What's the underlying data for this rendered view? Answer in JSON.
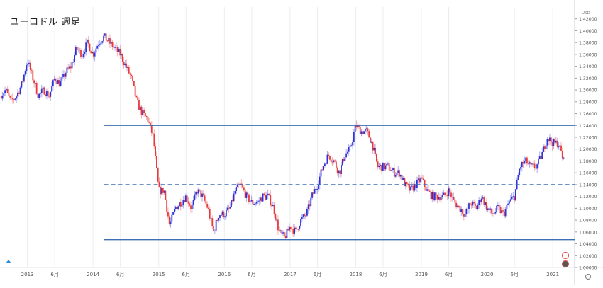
{
  "chart_data": {
    "type": "candlestick",
    "title": "ユーロドル 週足",
    "currency": "USD",
    "y_unit": "USD",
    "ylim": [
      1.0,
      1.44
    ],
    "y_ticks": [
      1.0,
      1.02,
      1.04,
      1.06,
      1.08,
      1.1,
      1.12,
      1.14,
      1.16,
      1.18,
      1.2,
      1.22,
      1.24,
      1.26,
      1.28,
      1.3,
      1.32,
      1.34,
      1.36,
      1.38,
      1.4,
      1.42
    ],
    "y_tick_labels": [
      "1.00000",
      "1.02000",
      "1.04000",
      "1.06000",
      "1.08000",
      "1.10000",
      "1.12000",
      "1.14000",
      "1.16000",
      "1.18000",
      "1.20000",
      "1.22000",
      "1.24000",
      "1.26000",
      "1.28000",
      "1.30000",
      "1.32000",
      "1.34000",
      "1.36000",
      "1.38000",
      "1.40000",
      "1.42000"
    ],
    "x_range": [
      "2012-08",
      "2021-05"
    ],
    "x_ticks": [
      {
        "date": "2013-01",
        "label": "2013"
      },
      {
        "date": "2013-06",
        "label": "6月"
      },
      {
        "date": "2014-01",
        "label": "2014"
      },
      {
        "date": "2014-06",
        "label": "6月"
      },
      {
        "date": "2015-01",
        "label": "2015"
      },
      {
        "date": "2015-06",
        "label": "6月"
      },
      {
        "date": "2016-01",
        "label": "2016"
      },
      {
        "date": "2016-06",
        "label": "6月"
      },
      {
        "date": "2017-01",
        "label": "2017"
      },
      {
        "date": "2017-06",
        "label": "6月"
      },
      {
        "date": "2018-01",
        "label": "2018"
      },
      {
        "date": "2018-06",
        "label": "6月"
      },
      {
        "date": "2019-01",
        "label": "2019"
      },
      {
        "date": "2019-06",
        "label": "6月"
      },
      {
        "date": "2020-01",
        "label": "2020"
      },
      {
        "date": "2020-06",
        "label": "6月"
      },
      {
        "date": "2021-01",
        "label": "2021"
      }
    ],
    "price_path": [
      [
        "2012-08",
        1.29
      ],
      [
        "2012-09",
        1.3
      ],
      [
        "2012-10",
        1.28
      ],
      [
        "2012-11",
        1.29
      ],
      [
        "2012-12",
        1.31
      ],
      [
        "2013-01",
        1.35
      ],
      [
        "2013-02",
        1.32
      ],
      [
        "2013-03",
        1.29
      ],
      [
        "2013-04",
        1.3
      ],
      [
        "2013-05",
        1.29
      ],
      [
        "2013-06",
        1.32
      ],
      [
        "2013-07",
        1.31
      ],
      [
        "2013-08",
        1.33
      ],
      [
        "2013-09",
        1.34
      ],
      [
        "2013-10",
        1.37
      ],
      [
        "2013-11",
        1.36
      ],
      [
        "2013-12",
        1.38
      ],
      [
        "2014-01",
        1.36
      ],
      [
        "2014-02",
        1.38
      ],
      [
        "2014-03",
        1.39
      ],
      [
        "2014-04",
        1.38
      ],
      [
        "2014-05",
        1.37
      ],
      [
        "2014-06",
        1.36
      ],
      [
        "2014-07",
        1.34
      ],
      [
        "2014-08",
        1.32
      ],
      [
        "2014-09",
        1.28
      ],
      [
        "2014-10",
        1.26
      ],
      [
        "2014-11",
        1.25
      ],
      [
        "2014-12",
        1.22
      ],
      [
        "2015-01",
        1.13
      ],
      [
        "2015-02",
        1.13
      ],
      [
        "2015-03",
        1.07
      ],
      [
        "2015-04",
        1.1
      ],
      [
        "2015-05",
        1.11
      ],
      [
        "2015-06",
        1.12
      ],
      [
        "2015-07",
        1.1
      ],
      [
        "2015-08",
        1.13
      ],
      [
        "2015-09",
        1.12
      ],
      [
        "2015-10",
        1.1
      ],
      [
        "2015-11",
        1.06
      ],
      [
        "2015-12",
        1.09
      ],
      [
        "2016-01",
        1.09
      ],
      [
        "2016-02",
        1.1
      ],
      [
        "2016-03",
        1.13
      ],
      [
        "2016-04",
        1.14
      ],
      [
        "2016-05",
        1.12
      ],
      [
        "2016-06",
        1.11
      ],
      [
        "2016-07",
        1.11
      ],
      [
        "2016-08",
        1.12
      ],
      [
        "2016-09",
        1.12
      ],
      [
        "2016-10",
        1.1
      ],
      [
        "2016-11",
        1.06
      ],
      [
        "2016-12",
        1.05
      ],
      [
        "2017-01",
        1.07
      ],
      [
        "2017-02",
        1.06
      ],
      [
        "2017-03",
        1.08
      ],
      [
        "2017-04",
        1.09
      ],
      [
        "2017-05",
        1.12
      ],
      [
        "2017-06",
        1.14
      ],
      [
        "2017-07",
        1.17
      ],
      [
        "2017-08",
        1.19
      ],
      [
        "2017-09",
        1.18
      ],
      [
        "2017-10",
        1.16
      ],
      [
        "2017-11",
        1.19
      ],
      [
        "2017-12",
        1.2
      ],
      [
        "2018-01",
        1.24
      ],
      [
        "2018-02",
        1.23
      ],
      [
        "2018-03",
        1.23
      ],
      [
        "2018-04",
        1.21
      ],
      [
        "2018-05",
        1.17
      ],
      [
        "2018-06",
        1.17
      ],
      [
        "2018-07",
        1.17
      ],
      [
        "2018-08",
        1.16
      ],
      [
        "2018-09",
        1.16
      ],
      [
        "2018-10",
        1.14
      ],
      [
        "2018-11",
        1.13
      ],
      [
        "2018-12",
        1.14
      ],
      [
        "2019-01",
        1.15
      ],
      [
        "2019-02",
        1.13
      ],
      [
        "2019-03",
        1.12
      ],
      [
        "2019-04",
        1.12
      ],
      [
        "2019-05",
        1.12
      ],
      [
        "2019-06",
        1.13
      ],
      [
        "2019-07",
        1.11
      ],
      [
        "2019-08",
        1.1
      ],
      [
        "2019-09",
        1.09
      ],
      [
        "2019-10",
        1.11
      ],
      [
        "2019-11",
        1.1
      ],
      [
        "2019-12",
        1.12
      ],
      [
        "2020-01",
        1.1
      ],
      [
        "2020-02",
        1.09
      ],
      [
        "2020-03",
        1.1
      ],
      [
        "2020-04",
        1.09
      ],
      [
        "2020-05",
        1.11
      ],
      [
        "2020-06",
        1.12
      ],
      [
        "2020-07",
        1.17
      ],
      [
        "2020-08",
        1.18
      ],
      [
        "2020-09",
        1.17
      ],
      [
        "2020-10",
        1.17
      ],
      [
        "2020-11",
        1.19
      ],
      [
        "2020-12",
        1.22
      ],
      [
        "2021-01",
        1.21
      ],
      [
        "2021-02",
        1.21
      ],
      [
        "2021-03",
        1.18
      ]
    ],
    "horizontal_lines": [
      {
        "value": 1.24,
        "style": "solid",
        "color": "#3c6fb3",
        "from": "2014-03"
      },
      {
        "value": 1.14,
        "style": "dashed",
        "color": "#3c6fb3",
        "from": "2014-03"
      },
      {
        "value": 1.047,
        "style": "solid",
        "color": "#3c6fb3",
        "from": "2014-03"
      }
    ],
    "colors": {
      "up": "#2f32d8",
      "down": "#e83a3a",
      "line": "#3c6fb3",
      "grid": "#e9edf3"
    },
    "grid": true
  }
}
